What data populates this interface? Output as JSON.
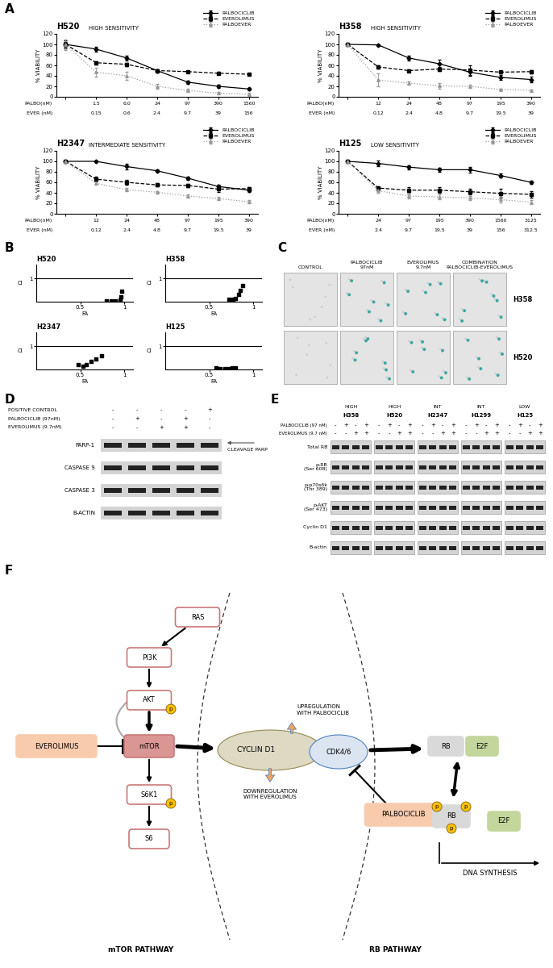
{
  "panel_labels": [
    "A",
    "B",
    "C",
    "D",
    "E",
    "F"
  ],
  "chart_data": [
    {
      "type": "line",
      "title": "H520",
      "subtitle": "HIGH SENSITIVITY",
      "ylabel": "% VIABILITY",
      "categories": [
        null,
        "1.5",
        "6.0",
        "24",
        "97",
        "390",
        "1560"
      ],
      "category_title": "PALBO(nM)",
      "categories_2": [
        null,
        "0.15",
        "0.6",
        "2.4",
        "9.7",
        "39",
        "156"
      ],
      "category_title_2": "EVER (nM)",
      "ylim": [
        0,
        120
      ],
      "yticks": [
        0,
        20,
        40,
        60,
        80,
        100,
        120
      ],
      "legend": "upper right",
      "series": [
        {
          "name": "PALBOCICLIB",
          "color": "#000000",
          "line_style": "solid",
          "marker": "diamond",
          "values": [
            100,
            91,
            74,
            50,
            28,
            20,
            15
          ],
          "errors": [
            8,
            5,
            4,
            3,
            3,
            3,
            2
          ]
        },
        {
          "name": "EVEROLIMUS",
          "color": "#000000",
          "line_style": "dashed",
          "marker": "square",
          "values": [
            100,
            65,
            62,
            50,
            48,
            45,
            43
          ],
          "errors": [
            5,
            3,
            3,
            2,
            2,
            2,
            2
          ]
        },
        {
          "name": "PALBOEVER",
          "color": "#999999",
          "line_style": "dotted",
          "marker": "triangle",
          "values": [
            100,
            47,
            40,
            20,
            12,
            7,
            5
          ],
          "errors": [
            10,
            9,
            7,
            5,
            3,
            2,
            2
          ]
        }
      ]
    },
    {
      "type": "line",
      "title": "H358",
      "subtitle": "HIGH SENSITIVITY",
      "ylabel": "% VIABILITY",
      "categories": [
        null,
        "12",
        "24",
        "48",
        "97",
        "195",
        "390"
      ],
      "category_title": "PALBO(nM)",
      "categories_2": [
        null,
        "0.12",
        "2.4",
        "4.8",
        "9.7",
        "19.5",
        "39"
      ],
      "category_title_2": "EVER (nM)",
      "ylim": [
        0,
        120
      ],
      "yticks": [
        0,
        20,
        40,
        60,
        80,
        100,
        120
      ],
      "legend": "upper right",
      "series": [
        {
          "name": "PALBOCICLIB",
          "color": "#000000",
          "line_style": "solid",
          "marker": "diamond",
          "values": [
            100,
            99,
            74,
            63,
            47,
            37,
            33
          ],
          "errors": [
            0,
            1,
            5,
            8,
            7,
            4,
            5
          ]
        },
        {
          "name": "EVEROLIMUS",
          "color": "#000000",
          "line_style": "dashed",
          "marker": "square",
          "values": [
            100,
            57,
            50,
            53,
            51,
            47,
            48
          ],
          "errors": [
            0,
            3,
            3,
            4,
            9,
            3,
            3
          ]
        },
        {
          "name": "PALBOEVER",
          "color": "#999999",
          "line_style": "dotted",
          "marker": "triangle",
          "values": [
            100,
            32,
            26,
            21,
            20,
            14,
            12
          ],
          "errors": [
            0,
            12,
            3,
            5,
            3,
            2,
            2
          ]
        }
      ]
    },
    {
      "type": "line",
      "title": "H2347",
      "subtitle": "INTERMEDIATE SENSITIVITY",
      "ylabel": "% VIABILITY",
      "categories": [
        null,
        "12",
        "24",
        "48",
        "97",
        "195",
        "390"
      ],
      "category_title": "PALBO(nM)",
      "categories_2": [
        null,
        "0.12",
        "2.4",
        "4.8",
        "9.7",
        "19.5",
        "39"
      ],
      "category_title_2": "EVER (nM)",
      "ylim": [
        0,
        120
      ],
      "yticks": [
        0,
        20,
        40,
        60,
        80,
        100,
        120
      ],
      "legend": "upper right",
      "series": [
        {
          "name": "PALBOCICLIB",
          "color": "#000000",
          "line_style": "solid",
          "marker": "diamond",
          "values": [
            100,
            100,
            90,
            82,
            68,
            52,
            45
          ],
          "errors": [
            0,
            1,
            5,
            2,
            3,
            4,
            3
          ]
        },
        {
          "name": "EVEROLIMUS",
          "color": "#000000",
          "line_style": "dashed",
          "marker": "square",
          "values": [
            100,
            66,
            60,
            55,
            54,
            47,
            48
          ],
          "errors": [
            0,
            4,
            4,
            3,
            3,
            6,
            3
          ]
        },
        {
          "name": "PALBOEVER",
          "color": "#999999",
          "line_style": "dotted",
          "marker": "triangle",
          "values": [
            100,
            58,
            46,
            41,
            34,
            29,
            23
          ],
          "errors": [
            0,
            3,
            3,
            2,
            3,
            3,
            3
          ]
        }
      ]
    },
    {
      "type": "line",
      "title": "H125",
      "subtitle": "LOW SENSITIVITY",
      "ylabel": "% VIABILITY",
      "categories": [
        null,
        "24",
        "97",
        "195",
        "390",
        "1560",
        "3125"
      ],
      "category_title": "PALBO(nM)",
      "categories_2": [
        null,
        "2.4",
        "9.7",
        "19.5",
        "39",
        "156",
        "312.5"
      ],
      "category_title_2": "EVER (nM)",
      "ylim": [
        0,
        120
      ],
      "yticks": [
        0,
        20,
        40,
        60,
        80,
        100,
        120
      ],
      "legend": "upper right",
      "series": [
        {
          "name": "PALBOCICLIB",
          "color": "#000000",
          "line_style": "solid",
          "marker": "diamond",
          "values": [
            100,
            96,
            89,
            84,
            84,
            73,
            60
          ],
          "errors": [
            0,
            6,
            4,
            4,
            5,
            4,
            3
          ]
        },
        {
          "name": "EVEROLIMUS",
          "color": "#000000",
          "line_style": "dashed",
          "marker": "square",
          "values": [
            100,
            49,
            45,
            45,
            42,
            39,
            37
          ],
          "errors": [
            0,
            4,
            6,
            5,
            5,
            8,
            6
          ]
        },
        {
          "name": "PALBOEVER",
          "color": "#999999",
          "line_style": "dotted",
          "marker": "triangle",
          "values": [
            100,
            44,
            34,
            32,
            30,
            27,
            22
          ],
          "errors": [
            0,
            4,
            5,
            5,
            4,
            5,
            4
          ]
        }
      ]
    },
    {
      "type": "scatter",
      "title": "H520",
      "xlabel": "FA",
      "ylabel": "CI",
      "color": "#000000",
      "marker": "square",
      "x": [
        0.8,
        0.85,
        0.9,
        0.95,
        0.96,
        0.97
      ],
      "values": [
        0.02,
        0.03,
        0.04,
        0.06,
        0.2,
        0.45
      ],
      "xlim": [
        0,
        1.1
      ],
      "ylim": [
        0,
        1.6
      ],
      "xticks": [
        0.5,
        1
      ],
      "yticks": [
        1
      ],
      "hline": 1
    },
    {
      "type": "scatter",
      "title": "H358",
      "xlabel": "FA",
      "ylabel": "CI",
      "color": "#000000",
      "marker": "square",
      "x": [
        0.72,
        0.77,
        0.8,
        0.83,
        0.85,
        0.88
      ],
      "values": [
        0.1,
        0.12,
        0.15,
        0.3,
        0.5,
        0.7
      ],
      "xlim": [
        0,
        1.1
      ],
      "ylim": [
        0,
        1.6
      ],
      "xticks": [
        0.5,
        1
      ],
      "yticks": [
        1
      ],
      "hline": 1
    },
    {
      "type": "scatter",
      "title": "H2347",
      "xlabel": "FA",
      "ylabel": "CI",
      "color": "#000000",
      "marker": "square",
      "x": [
        0.48,
        0.53,
        0.57,
        0.62,
        0.68,
        0.74
      ],
      "values": [
        0.2,
        0.15,
        0.22,
        0.35,
        0.45,
        0.58
      ],
      "xlim": [
        0,
        1.1
      ],
      "ylim": [
        0,
        1.6
      ],
      "xticks": [
        0.5,
        1
      ],
      "yticks": [
        1
      ],
      "hline": 1
    },
    {
      "type": "scatter",
      "title": "H125",
      "xlabel": "FA",
      "ylabel": "CI",
      "color": "#000000",
      "marker": "square",
      "x": [
        0.58,
        0.62,
        0.68,
        0.72,
        0.76,
        0.8
      ],
      "values": [
        0.08,
        0.02,
        0.05,
        0.04,
        0.06,
        0.07
      ],
      "xlim": [
        0,
        1.1
      ],
      "ylim": [
        0,
        1.6
      ],
      "xticks": [
        0.5,
        1
      ],
      "yticks": [
        1
      ],
      "hline": 1
    }
  ],
  "images": {
    "columns": [
      "CONTROL",
      "PALBOCICLIB\n97nM",
      "EVEROLIMUS\n9.7nM",
      "COMBINATION\nPALBOCICLIB-EVEROLIMUS"
    ],
    "rows": [
      "H358",
      "H520"
    ]
  },
  "blot_d": {
    "treatments": [
      {
        "label": "POSITIVE CONTROL",
        "signs": [
          "-",
          "-",
          "-",
          "-",
          "+"
        ]
      },
      {
        "label": "PALBOCICLIB (97nM)",
        "signs": [
          "-",
          "+",
          "-",
          "+",
          "-"
        ]
      },
      {
        "label": "EVEROLIMUS (9.7nM)",
        "signs": [
          "-",
          "-",
          "+",
          "+",
          "-"
        ]
      }
    ],
    "rows": [
      "PARP-1",
      "CASPASE 9",
      "CASPASE 3",
      "B-ACTIN"
    ],
    "arrow_note": "CLEAVAGE PARP"
  },
  "blot_e": {
    "groups": [
      {
        "sensitivity": "HIGH",
        "cell_line": "H358"
      },
      {
        "sensitivity": "HIGH",
        "cell_line": "H520"
      },
      {
        "sensitivity": "INT",
        "cell_line": "H2347"
      },
      {
        "sensitivity": "INT",
        "cell_line": "H1299"
      },
      {
        "sensitivity": "LOW",
        "cell_line": "H125"
      }
    ],
    "treatments": [
      {
        "label": "PALBOCICLIB (97 nM)",
        "signs": [
          "-",
          "+",
          "-",
          "+"
        ]
      },
      {
        "label": "EVEROLIMUS (9.7 nM)",
        "signs": [
          "-",
          "-",
          "+",
          "+"
        ]
      }
    ],
    "rows": [
      "Total RB",
      "p-RB\n(Ser 608)",
      "p-p70s6k\n(Thr 389)",
      "p-AKT\n(Ser 473)",
      "Cyclin D1",
      "B-actin"
    ]
  },
  "diagram": {
    "nodes": {
      "ras": "RAS",
      "pi3k": "PI3K",
      "akt": "AKT",
      "mtor": "mTOR",
      "s6k1": "S6K1",
      "s6": "S6",
      "everolimus": "EVEROLIMUS",
      "cyclin_d1": "CYCLIN D1",
      "cdk": "CDK4/6",
      "palbociclib": "PALBOCICLIB",
      "rb": "RB",
      "e2f": "E2F"
    },
    "phospho": "p",
    "upregulation": "UPREGULATION\nWITH PALBOCICLIB",
    "downregulation": "DOWNREGULATION\nWITH EVEROLIMUS",
    "dna_synthesis": "DNA SYNTHESIS",
    "pathways": [
      "mTOR PATHWAY",
      "RB PATHWAY"
    ]
  }
}
